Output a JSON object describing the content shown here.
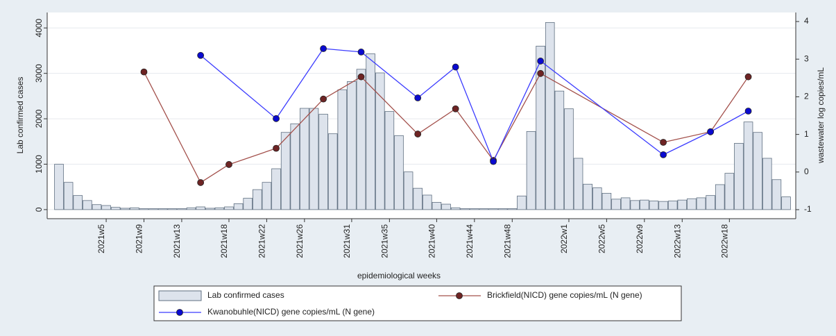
{
  "chart_data": {
    "type": "bar",
    "x_label": "epidemiological weeks",
    "y_label": "Lab confirmed cases",
    "y2_label": "wastewater log copies/mL",
    "categories": [
      null,
      null,
      null,
      null,
      null,
      "2021w5",
      null,
      null,
      null,
      "2021w9",
      null,
      null,
      null,
      "2021w13",
      null,
      null,
      null,
      null,
      "2021w18",
      null,
      null,
      null,
      "2021w22",
      null,
      null,
      null,
      "2021w26",
      null,
      null,
      null,
      null,
      "2021w31",
      null,
      null,
      null,
      "2021w35",
      null,
      null,
      null,
      null,
      "2021w40",
      null,
      null,
      null,
      "2021w44",
      null,
      null,
      null,
      "2021w48",
      null,
      null,
      null,
      null,
      null,
      "2022w1",
      null,
      null,
      null,
      "2022w5",
      null,
      null,
      null,
      "2022w9",
      null,
      null,
      null,
      "2022w13",
      null,
      null,
      null,
      null,
      "2022w18",
      null,
      null,
      null,
      null,
      null,
      null
    ],
    "series": [
      {
        "name": "Lab confirmed cases",
        "type": "bar",
        "color": "#dde3ec",
        "edgecolor": "#5f6f80",
        "values": [
          1000,
          600,
          310,
          200,
          110,
          90,
          50,
          30,
          40,
          20,
          20,
          20,
          20,
          20,
          40,
          60,
          30,
          40,
          60,
          130,
          250,
          440,
          600,
          900,
          1700,
          1890,
          2230,
          2230,
          2100,
          1670,
          2640,
          2820,
          3090,
          3430,
          3010,
          2160,
          1630,
          830,
          470,
          320,
          160,
          120,
          40,
          20,
          20,
          20,
          20,
          20,
          20,
          300,
          1720,
          3600,
          4120,
          2610,
          2220,
          1130,
          560,
          480,
          360,
          230,
          260,
          200,
          210,
          190,
          180,
          190,
          210,
          240,
          260,
          310,
          550,
          800,
          1460,
          1930,
          1700,
          1130,
          660,
          280
        ]
      },
      {
        "name": "Brickfield(NICD) gene copies/mL (N gene)",
        "type": "line",
        "axis": "y2",
        "color": "#a3504b",
        "marker_color": "#6e2424",
        "values": [
          null,
          null,
          null,
          null,
          null,
          null,
          null,
          null,
          null,
          2.66,
          null,
          null,
          null,
          null,
          null,
          -0.28,
          null,
          null,
          0.2,
          null,
          null,
          null,
          null,
          0.63,
          null,
          null,
          null,
          null,
          1.94,
          null,
          null,
          null,
          2.53,
          null,
          null,
          null,
          null,
          null,
          1.01,
          null,
          null,
          null,
          1.68,
          null,
          null,
          null,
          0.31,
          null,
          null,
          null,
          null,
          2.62,
          null,
          null,
          null,
          null,
          null,
          null,
          null,
          null,
          null,
          null,
          null,
          null,
          0.79,
          null,
          null,
          null,
          null,
          1.07,
          null,
          null,
          null,
          2.53,
          null,
          null,
          null,
          null
        ]
      },
      {
        "name": "Kwanobuhle(NICD) gene copies/mL (N gene)",
        "type": "line",
        "axis": "y2",
        "color": "#3b3bff",
        "marker_color": "#0a0ad0",
        "values": [
          null,
          null,
          null,
          null,
          null,
          null,
          null,
          null,
          null,
          null,
          null,
          null,
          null,
          null,
          null,
          3.1,
          null,
          null,
          null,
          null,
          null,
          null,
          null,
          1.42,
          null,
          null,
          null,
          null,
          3.28,
          null,
          null,
          null,
          3.19,
          null,
          null,
          null,
          null,
          null,
          1.97,
          null,
          null,
          null,
          2.79,
          null,
          null,
          null,
          0.28,
          null,
          null,
          null,
          null,
          2.95,
          null,
          null,
          null,
          null,
          null,
          null,
          null,
          null,
          null,
          null,
          null,
          null,
          0.46,
          null,
          null,
          null,
          null,
          1.07,
          null,
          null,
          null,
          1.62,
          null,
          null,
          null,
          null
        ]
      }
    ],
    "ylim": [
      -200,
      4340
    ],
    "yticks": [
      0,
      1000,
      2000,
      3000,
      4000
    ],
    "y2lim": [
      -1.24,
      4.24
    ],
    "y2ticks": [
      -1,
      0,
      1,
      2,
      3,
      4
    ],
    "grid": true,
    "legend": "bottom"
  }
}
